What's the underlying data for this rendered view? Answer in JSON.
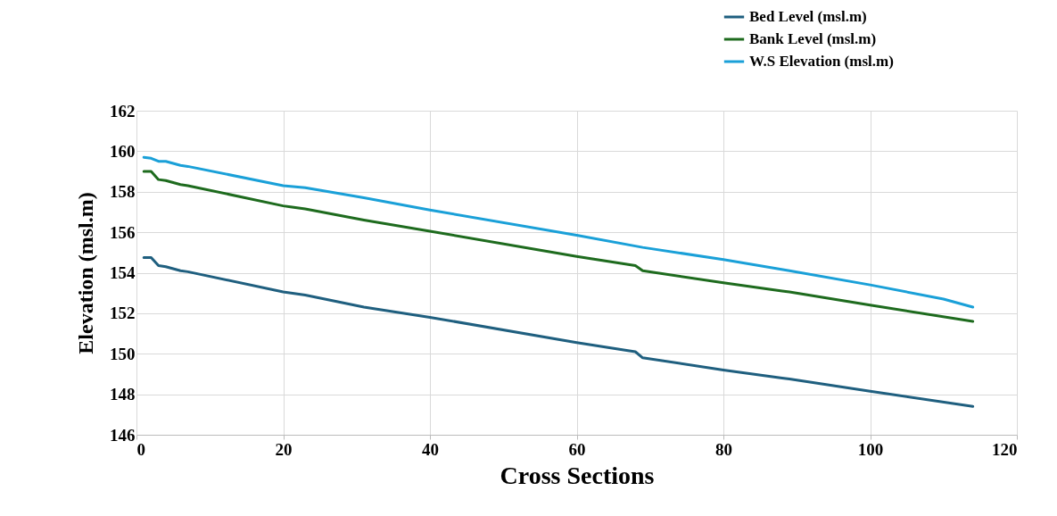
{
  "chart_data": {
    "type": "line",
    "xlabel": "Cross Sections",
    "ylabel": "Elevation (msl.m)",
    "xlim": [
      0,
      120
    ],
    "xticks": [
      0,
      20,
      40,
      60,
      80,
      100,
      120
    ],
    "ylim": [
      146,
      162
    ],
    "yticks": [
      146,
      148,
      150,
      152,
      154,
      156,
      158,
      160,
      162
    ],
    "grid": true,
    "legend": "top right",
    "marker": "none",
    "line_style": "solid",
    "series": [
      {
        "name": "Bed Level (msl.m)",
        "color": "#1f5f7f",
        "x": [
          1,
          2,
          3,
          4,
          6,
          7,
          20,
          23,
          31,
          40,
          60,
          67,
          68,
          69,
          80,
          88,
          89,
          100,
          114
        ],
        "values": [
          154.75,
          154.75,
          154.35,
          154.3,
          154.1,
          154.05,
          153.05,
          152.9,
          152.3,
          151.8,
          150.55,
          150.15,
          150.1,
          149.8,
          149.2,
          148.8,
          148.75,
          148.15,
          147.4
        ]
      },
      {
        "name": "Bank Level (msl.m)",
        "color": "#1e6b1e",
        "x": [
          1,
          2,
          3,
          4,
          6,
          7,
          20,
          21,
          23,
          31,
          40,
          60,
          68,
          69,
          80,
          88,
          89,
          100,
          114
        ],
        "values": [
          159.0,
          159.0,
          158.6,
          158.55,
          158.35,
          158.3,
          157.3,
          157.25,
          157.15,
          156.6,
          156.05,
          154.8,
          154.35,
          154.1,
          153.5,
          153.1,
          153.05,
          152.4,
          151.6
        ]
      },
      {
        "name": "W.S Elevation (msl.m)",
        "color": "#1aa0d8",
        "x": [
          1,
          2,
          3,
          4,
          6,
          7,
          20,
          23,
          31,
          40,
          60,
          69,
          80,
          89,
          100,
          110,
          114
        ],
        "values": [
          159.7,
          159.65,
          159.5,
          159.5,
          159.3,
          159.25,
          158.3,
          158.2,
          157.7,
          157.1,
          155.85,
          155.25,
          154.65,
          154.1,
          153.4,
          152.7,
          152.3
        ]
      }
    ]
  }
}
